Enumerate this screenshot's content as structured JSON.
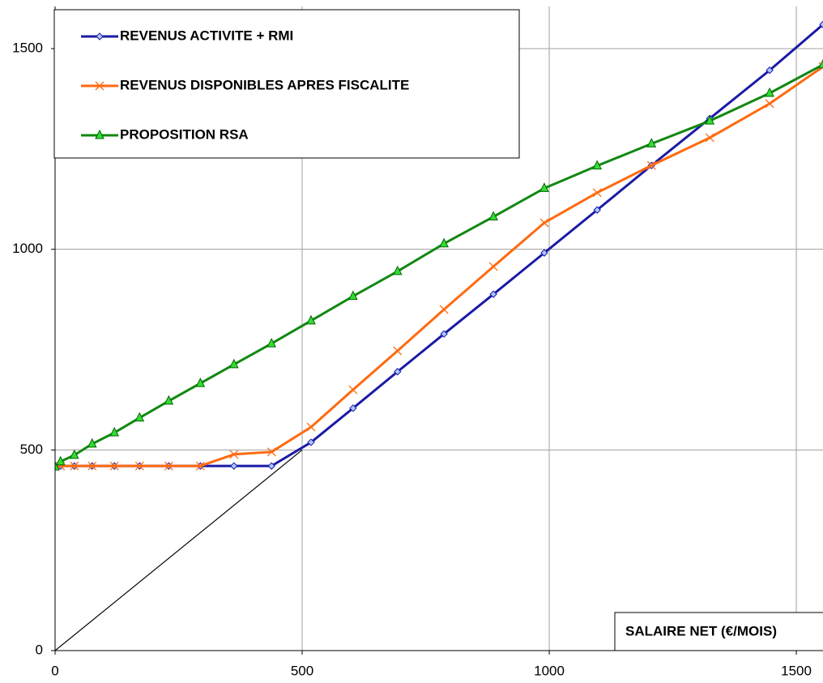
{
  "chart_data": {
    "type": "line",
    "annotation": "SALAIRE NET (€/MOIS)",
    "xlim": [
      0,
      1554
    ],
    "ylim": [
      0,
      1605
    ],
    "xticks": [
      0,
      500,
      1000,
      1500
    ],
    "yticks": [
      0,
      500,
      1000,
      1500
    ],
    "grid": true,
    "series": [
      {
        "name": "REVENUS ACTIVITE + RMI",
        "color": "#1a1aa6",
        "marker": "diamond",
        "x": [
          0,
          11,
          39,
          75,
          120,
          171,
          230,
          294,
          362,
          438,
          518,
          603,
          693,
          787,
          887,
          990,
          1097,
          1207,
          1325,
          1446,
          1554
        ],
        "values": [
          460,
          460,
          460,
          460,
          460,
          460,
          460,
          460,
          460,
          460,
          519,
          604,
          695,
          789,
          888,
          991,
          1098,
          1209,
          1326,
          1446,
          1560
        ]
      },
      {
        "name": "REVENUS DISPONIBLES APRES FISCALITE",
        "color": "#ff6a10",
        "marker": "cross",
        "x": [
          0,
          11,
          39,
          75,
          120,
          171,
          230,
          294,
          362,
          438,
          518,
          603,
          693,
          787,
          887,
          990,
          1097,
          1207,
          1325,
          1446,
          1554
        ],
        "values": [
          460,
          460,
          460,
          460,
          460,
          460,
          460,
          460,
          489,
          495,
          557,
          650,
          747,
          850,
          957,
          1066,
          1141,
          1209,
          1278,
          1363,
          1455
        ]
      },
      {
        "name": "PROPOSITION RSA",
        "color": "#118811",
        "marker": "triangle",
        "x": [
          0,
          11,
          39,
          75,
          120,
          171,
          230,
          294,
          362,
          438,
          518,
          603,
          693,
          787,
          887,
          990,
          1097,
          1207,
          1325,
          1446,
          1554
        ],
        "values": [
          458,
          471,
          487,
          515,
          543,
          580,
          622,
          666,
          713,
          765,
          822,
          883,
          945,
          1014,
          1081,
          1152,
          1208,
          1263,
          1320,
          1389,
          1460
        ]
      },
      {
        "color": "#000000",
        "marker": "none",
        "x": [
          0,
          500
        ],
        "values": [
          0,
          500
        ]
      }
    ]
  }
}
